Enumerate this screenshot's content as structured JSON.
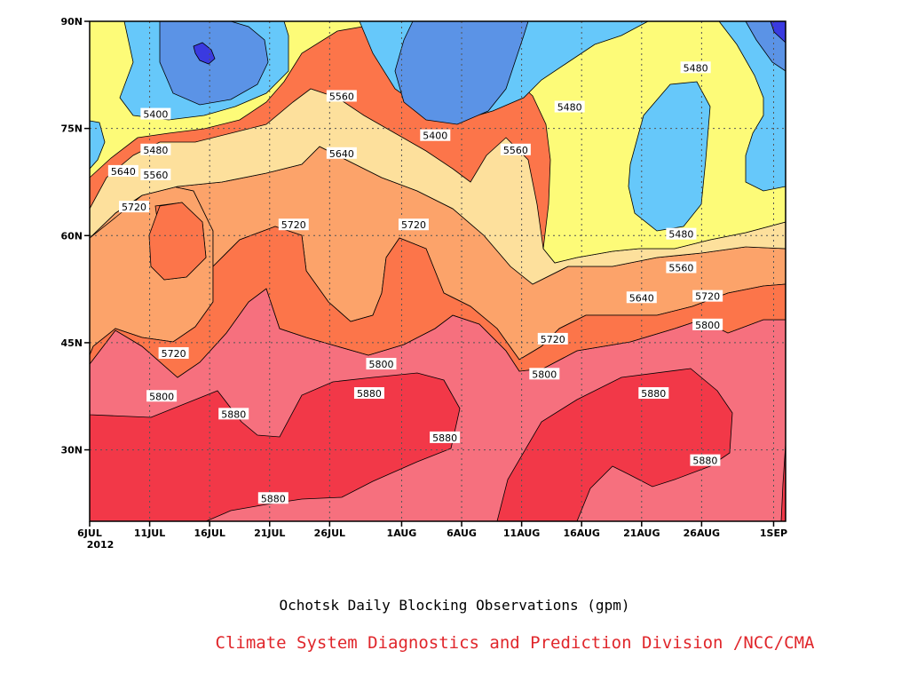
{
  "caption_title": "Ochotsk Daily Blocking Observations (gpm)",
  "caption_source": "Climate System Diagnostics and Prediction Division /NCC/CMA",
  "chart_data": {
    "type": "contour",
    "x_ticks": [
      {
        "day": 0,
        "label": "6JUL",
        "sub": "2012"
      },
      {
        "day": 5,
        "label": "11JUL"
      },
      {
        "day": 10,
        "label": "16JUL"
      },
      {
        "day": 15,
        "label": "21JUL"
      },
      {
        "day": 20,
        "label": "26JUL"
      },
      {
        "day": 26,
        "label": "1AUG"
      },
      {
        "day": 31,
        "label": "6AUG"
      },
      {
        "day": 36,
        "label": "11AUG"
      },
      {
        "day": 41,
        "label": "16AUG"
      },
      {
        "day": 46,
        "label": "21AUG"
      },
      {
        "day": 51,
        "label": "26AUG"
      },
      {
        "day": 57,
        "label": "1SEP"
      }
    ],
    "y_ticks": [
      {
        "lat": 30,
        "label": "30N"
      },
      {
        "lat": 45,
        "label": "45N"
      },
      {
        "lat": 60,
        "label": "60N"
      },
      {
        "lat": 75,
        "label": "75N"
      },
      {
        "lat": 90,
        "label": "90N"
      }
    ],
    "xlim_days": [
      0,
      58
    ],
    "ylim_lat": [
      20,
      90
    ],
    "contour_levels": [
      5400,
      5480,
      5560,
      5640,
      5720,
      5800,
      5880
    ],
    "level_colors": {
      "below_5320": "#3a3ae0",
      "5320_5400": "#5b93e6",
      "5400_5480": "#66c8fa",
      "5480_5560": "#fdfb78",
      "5560_5640": "#fde09c",
      "5640_5720": "#fca36a",
      "5720_5800": "#fc754a",
      "5800_5880": "#f6707e",
      "above_5880": "#f23848"
    },
    "contour_labels": [
      {
        "value": "5400",
        "day": 5.5,
        "lat": 77
      },
      {
        "value": "5480",
        "day": 5.5,
        "lat": 72
      },
      {
        "value": "5560",
        "day": 5.5,
        "lat": 68.5
      },
      {
        "value": "5640",
        "day": 2.8,
        "lat": 69
      },
      {
        "value": "5720",
        "day": 3.7,
        "lat": 64
      },
      {
        "value": "5720",
        "day": 17,
        "lat": 61.5
      },
      {
        "value": "5560",
        "day": 21,
        "lat": 79.5
      },
      {
        "value": "5640",
        "day": 21,
        "lat": 71.5
      },
      {
        "value": "5400",
        "day": 28.8,
        "lat": 74
      },
      {
        "value": "5720",
        "day": 27,
        "lat": 61.5
      },
      {
        "value": "5560",
        "day": 35.5,
        "lat": 72
      },
      {
        "value": "5480",
        "day": 40,
        "lat": 78
      },
      {
        "value": "5480",
        "day": 50.5,
        "lat": 83.5
      },
      {
        "value": "5480",
        "day": 49.3,
        "lat": 60.2
      },
      {
        "value": "5560",
        "day": 49.3,
        "lat": 55.5
      },
      {
        "value": "5640",
        "day": 46,
        "lat": 51.3
      },
      {
        "value": "5720",
        "day": 51.5,
        "lat": 51.5
      },
      {
        "value": "5800",
        "day": 51.5,
        "lat": 47.5
      },
      {
        "value": "5720",
        "day": 7,
        "lat": 43.5
      },
      {
        "value": "5800",
        "day": 6,
        "lat": 37.5
      },
      {
        "value": "5880",
        "day": 12,
        "lat": 35
      },
      {
        "value": "5800",
        "day": 24.3,
        "lat": 42
      },
      {
        "value": "5880",
        "day": 23.3,
        "lat": 37.9
      },
      {
        "value": "5880",
        "day": 29.6,
        "lat": 31.7
      },
      {
        "value": "5880",
        "day": 15.3,
        "lat": 23.2
      },
      {
        "value": "5720",
        "day": 38.6,
        "lat": 45.5
      },
      {
        "value": "5800",
        "day": 37.9,
        "lat": 40.6
      },
      {
        "value": "5880",
        "day": 47,
        "lat": 37.9
      },
      {
        "value": "5880",
        "day": 51.3,
        "lat": 28.5
      }
    ]
  }
}
